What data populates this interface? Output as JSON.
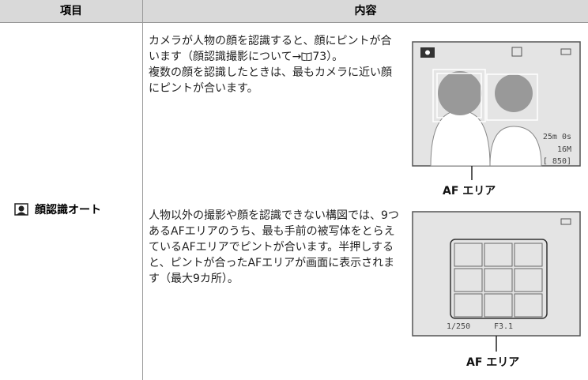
{
  "header": {
    "item": "項目",
    "content": "内容"
  },
  "row": {
    "item": "顔認識オート",
    "para1": {
      "text_a": "カメラが人物の顔を認識すると、顔にピントが合います（顔認識撮影について→",
      "page_ref": "73",
      "text_b": "）。",
      "text_c": "複数の顔を認識したときは、最もカメラに近い顔にピントが合います。"
    },
    "para2": "人物以外の撮影や顔を認識できない構図では、9つあるAFエリアのうち、最も手前の被写体をとらえているAFエリアでピントが合います。半押しすると、ピントが合ったAFエリアが画面に表示されます（最大9カ所）。",
    "screen1": {
      "remaining_time": "25m 0s",
      "image_size": "16M",
      "shots": "[ 850]",
      "caption": "AF エリア"
    },
    "screen2": {
      "shutter": "1/250",
      "aperture": "F3.1",
      "caption": "AF エリア"
    }
  }
}
